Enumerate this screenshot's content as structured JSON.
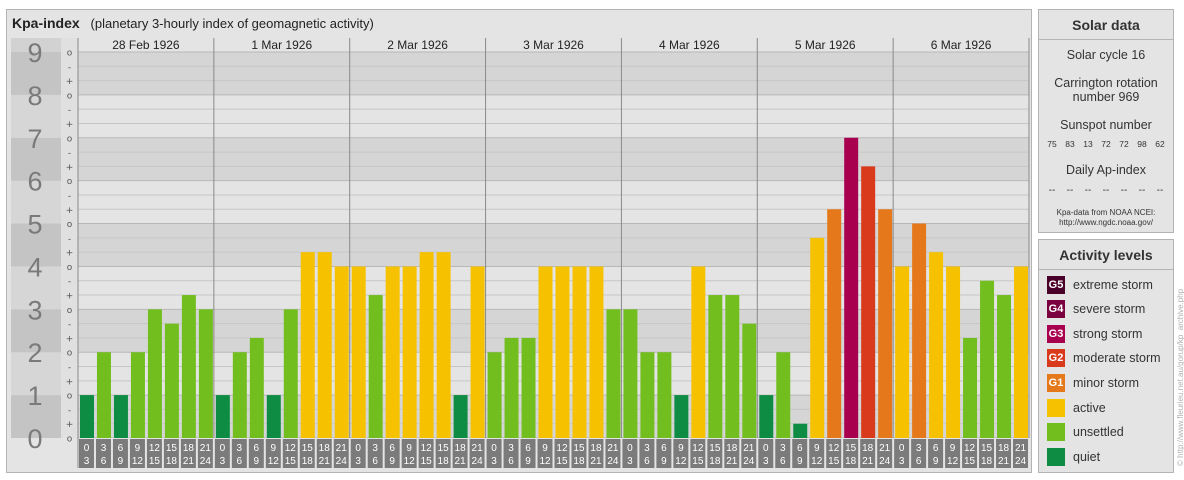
{
  "header": {
    "title": "Kpa-index",
    "subtitle": "(planetary 3-hourly index of geomagnetic activity)"
  },
  "chart_data": {
    "type": "bar",
    "title": "Kpa-index",
    "subtitle": "(planetary 3-hourly index of geomagnetic activity)",
    "ylim": [
      0,
      9
    ],
    "y_ticks": [
      "0",
      "1",
      "2",
      "3",
      "4",
      "5",
      "6",
      "7",
      "8",
      "9"
    ],
    "y_minor_ticks": [
      "o",
      "+",
      "-",
      "o",
      "+",
      "-",
      "o",
      "+",
      "-",
      "o",
      "+",
      "-",
      "o",
      "+",
      "-",
      "o",
      "+",
      "-",
      "o",
      "+",
      "-",
      "o",
      "+",
      "-",
      "o",
      "+",
      "-",
      "o"
    ],
    "days": [
      "28 Feb 1926",
      "1 Mar 1926",
      "2 Mar 1926",
      "3 Mar 1926",
      "4 Mar 1926",
      "5 Mar 1926",
      "6 Mar 1926"
    ],
    "interval_start": [
      "0",
      "3",
      "6",
      "9",
      "12",
      "15",
      "18",
      "21"
    ],
    "interval_end": [
      "3",
      "6",
      "9",
      "12",
      "15",
      "18",
      "21",
      "24"
    ],
    "values": [
      [
        1,
        2,
        1,
        2,
        3,
        2.667,
        3.333,
        3
      ],
      [
        1,
        2,
        2.333,
        1,
        3,
        4.333,
        4.333,
        4
      ],
      [
        4,
        3.333,
        4,
        4,
        4.333,
        4.333,
        1,
        4
      ],
      [
        2,
        2.333,
        2.333,
        4,
        4,
        4,
        4,
        3
      ],
      [
        3,
        2,
        2,
        1,
        4,
        3.333,
        3.333,
        2.667
      ],
      [
        1,
        2,
        0.333,
        4.667,
        5.333,
        7,
        6.333,
        5.333
      ],
      [
        4,
        5,
        4.333,
        4,
        2.333,
        3.667,
        3.333,
        4
      ]
    ],
    "grid": true
  },
  "solar": {
    "heading": "Solar data",
    "cycle": "Solar cycle 16",
    "carrington": "Carrington rotation number 969",
    "sunspot_label": "Sunspot number",
    "sunspot_values": [
      "75",
      "83",
      "13",
      "72",
      "72",
      "98",
      "62"
    ],
    "ap_label": "Daily Ap-index",
    "ap_values": [
      "--",
      "--",
      "--",
      "--",
      "--",
      "--",
      "--"
    ],
    "credit_line1": "Kpa-data from NOAA NCEI:",
    "credit_line2": "http://www.ngdc.noaa.gov/"
  },
  "activity": {
    "heading": "Activity levels",
    "levels": [
      {
        "code": "G5",
        "label": "extreme storm",
        "color": "#4a0028"
      },
      {
        "code": "G4",
        "label": "severe storm",
        "color": "#7a0040"
      },
      {
        "code": "G3",
        "label": "strong storm",
        "color": "#a8004e"
      },
      {
        "code": "G2",
        "label": "moderate storm",
        "color": "#d93a1c"
      },
      {
        "code": "G1",
        "label": "minor storm",
        "color": "#e5781a"
      },
      {
        "code": "",
        "label": "active",
        "color": "#f6c200"
      },
      {
        "code": "",
        "label": "unsettled",
        "color": "#72be1e"
      },
      {
        "code": "",
        "label": "quiet",
        "color": "#0e8c44"
      }
    ]
  },
  "copyright": "© http://www.fleurieu.net.au/gorup/kp_archive.php"
}
